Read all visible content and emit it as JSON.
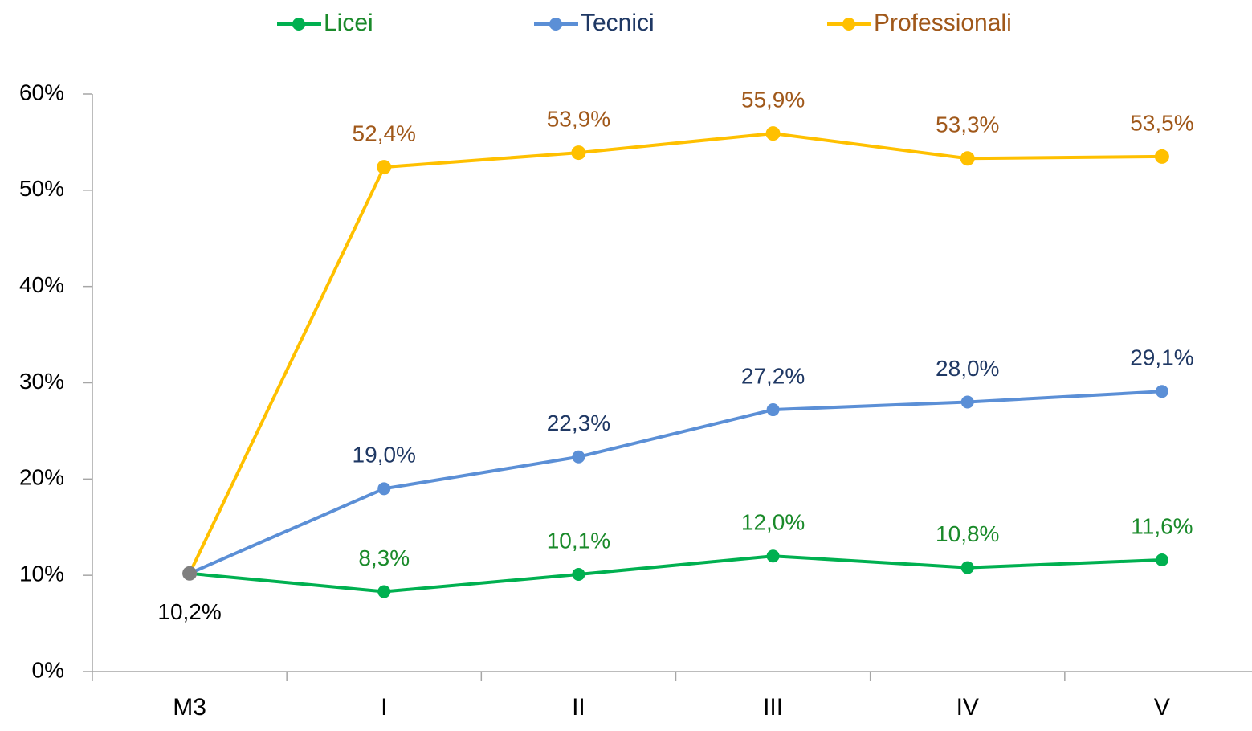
{
  "chart_data": {
    "type": "line",
    "categories": [
      "M3",
      "I",
      "II",
      "III",
      "IV",
      "V"
    ],
    "series": [
      {
        "name": "Licei",
        "color": "#00b050",
        "label_color": "#1a8a2a",
        "values": [
          10.2,
          8.3,
          10.1,
          12.0,
          10.8,
          11.6
        ],
        "value_labels": [
          "10,2%",
          "8,3%",
          "10,1%",
          "12,0%",
          "10,8%",
          "11,6%"
        ]
      },
      {
        "name": "Tecnici",
        "color": "#5b8fd6",
        "label_color": "#1f3864",
        "values": [
          10.2,
          19.0,
          22.3,
          27.2,
          28.0,
          29.1
        ],
        "value_labels": [
          null,
          "19,0%",
          "22,3%",
          "27,2%",
          "28,0%",
          "29,1%"
        ]
      },
      {
        "name": "Professionali",
        "color": "#ffc000",
        "label_color": "#a0581a",
        "values": [
          10.2,
          52.4,
          53.9,
          55.9,
          53.3,
          53.5
        ],
        "value_labels": [
          null,
          "52,4%",
          "53,9%",
          "55,9%",
          "53,3%",
          "53,5%"
        ]
      }
    ],
    "start_marker_color": "#7f7f7f",
    "ylim": [
      0,
      60
    ],
    "yticks": [
      {
        "value": 0,
        "label": "0%"
      },
      {
        "value": 10,
        "label": "10%"
      },
      {
        "value": 20,
        "label": "20%"
      },
      {
        "value": 30,
        "label": "30%"
      },
      {
        "value": 40,
        "label": "40%"
      },
      {
        "value": 50,
        "label": "50%"
      },
      {
        "value": 60,
        "label": "60%"
      }
    ],
    "legend": "top",
    "grid": false
  }
}
